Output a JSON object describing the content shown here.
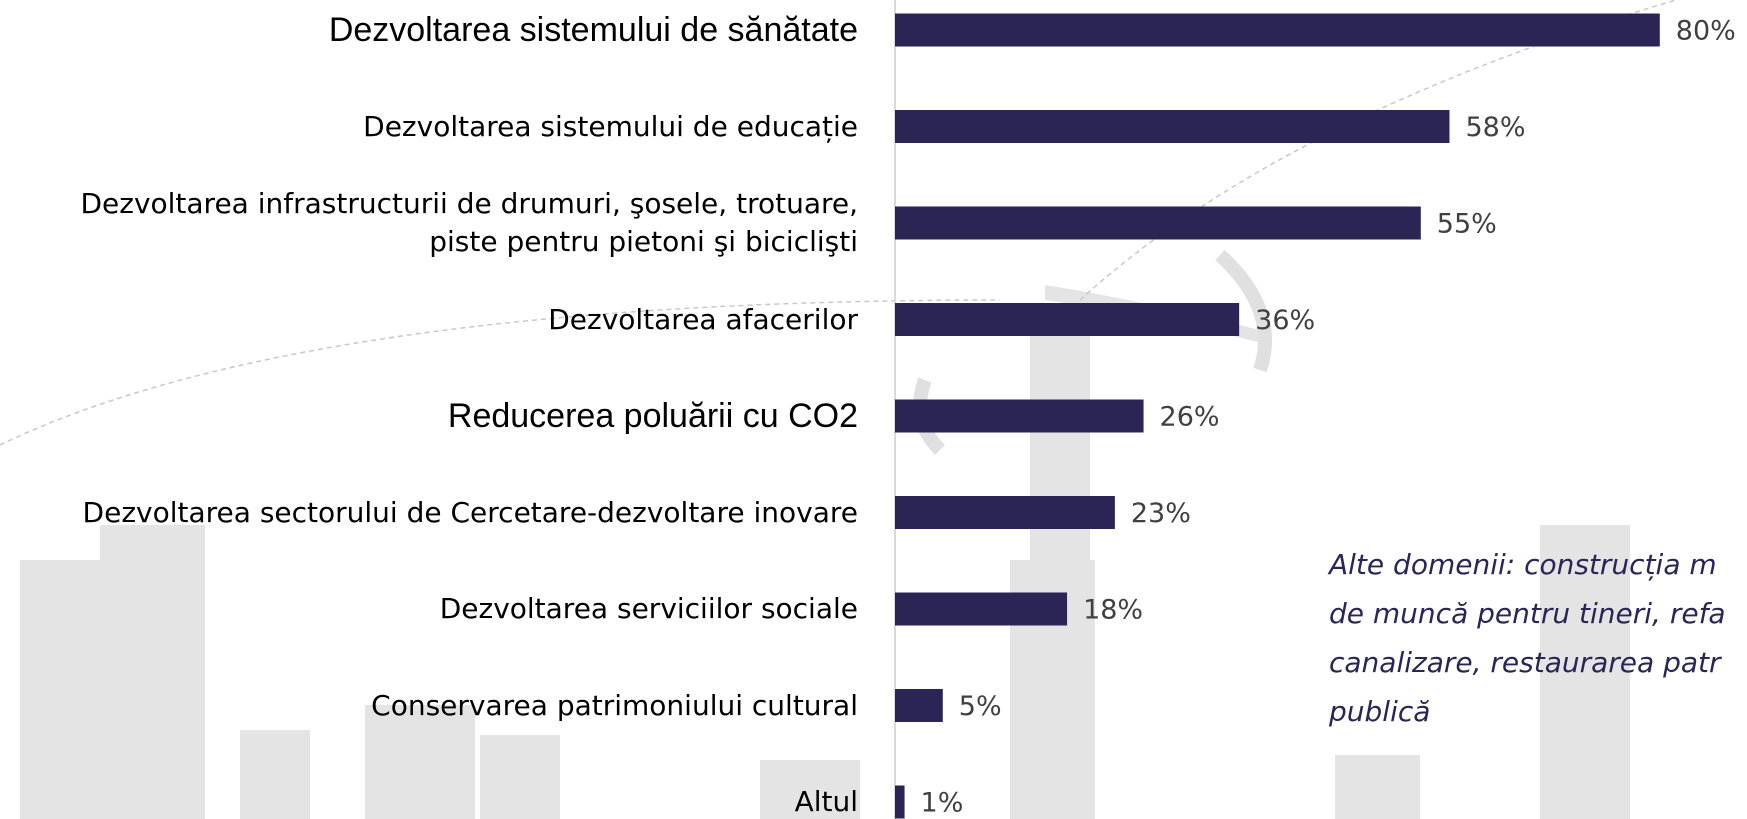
{
  "chart_data": {
    "type": "bar",
    "orientation": "horizontal",
    "categories": [
      "Dezvoltarea sistemului de sănătate",
      "Dezvoltarea sistemului de educație",
      "Dezvoltarea infrastructurii de drumuri, şosele, trotuare,\npiste pentru pietoni şi biciclişti",
      "Dezvoltarea afacerilor",
      "Reducerea poluării cu CO2",
      "Dezvoltarea sectorului de Cercetare-dezvoltare inovare",
      "Dezvoltarea serviciilor sociale",
      "Conservarea patrimoniului cultural",
      "Altul"
    ],
    "values": [
      80,
      58,
      55,
      36,
      26,
      23,
      18,
      5,
      1
    ],
    "value_labels": [
      "80%",
      "58%",
      "55%",
      "36%",
      "26%",
      "23%",
      "18%",
      "5%",
      "1%"
    ],
    "color": "#2b2556",
    "xlim": [
      0,
      100
    ],
    "annotation": [
      "Alte domenii: construcția m",
      "de muncă pentru tineri, refa",
      "canalizare, restaurarea patr",
      "publică"
    ]
  }
}
